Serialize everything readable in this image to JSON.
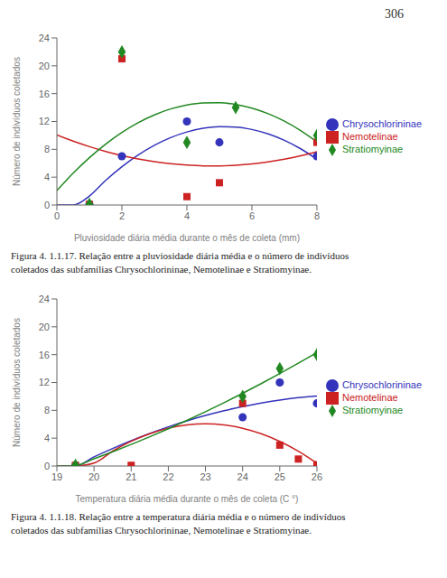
{
  "chart_data": [
    {
      "type": "scatter",
      "annotations": [
        "306"
      ],
      "xlabel": "Pluviosidade diária média durante o mês de coleta (mm)",
      "ylabel": "Número de indivíduos coletados",
      "caption": "Figura 4. 1.1.17. Relação entre a pluviosidade diária média e o número de indivíduos\ncoletados das subfamílias Chrysochlorininae, Nemotelinae e Stratiomyinae.",
      "xlim": [
        0,
        8
      ],
      "ylim": [
        0,
        24
      ],
      "xticks": [
        0,
        2,
        4,
        6,
        8
      ],
      "yticks": [
        0,
        4,
        8,
        12,
        16,
        20,
        24
      ],
      "grid": false,
      "legend": "right",
      "fit_x": [
        0,
        0.5,
        1,
        1.5,
        2,
        2.5,
        3,
        3.5,
        4,
        4.5,
        5,
        5.5,
        6,
        6.5,
        7,
        7.5,
        8
      ],
      "series": [
        {
          "name": "Chrysochlorininae",
          "color": "#3333bb",
          "marker": "circle",
          "x": [
            1.0,
            2.0,
            4.0,
            5.0,
            8.0
          ],
          "values": [
            0.1,
            7.0,
            12.0,
            9.0,
            7.0
          ],
          "fit_values": [
            0,
            0,
            1.275,
            3.536,
            5.507,
            7.188,
            8.58,
            9.682,
            10.495,
            11.018,
            11.252,
            11.196,
            10.85,
            10.215,
            9.29,
            8.076,
            6.572
          ]
        },
        {
          "name": "Nemotelinae",
          "color": "#cc2222",
          "marker": "square",
          "x": [
            1.0,
            2.0,
            4.0,
            5.0,
            8.0
          ],
          "values": [
            0.1,
            21.0,
            1.2,
            3.2,
            9.0
          ],
          "fit_values": [
            10.055,
            9.171,
            8.385,
            7.697,
            7.107,
            6.614,
            6.22,
            5.924,
            5.725,
            5.624,
            5.622,
            5.717,
            5.91,
            6.201,
            6.59,
            7.077,
            7.662
          ]
        },
        {
          "name": "Stratiomyinae",
          "color": "#228822",
          "marker": "diamond",
          "x": [
            1.0,
            2.0,
            4.0,
            5.5,
            8.0
          ],
          "values": [
            0.1,
            22.0,
            9.0,
            14.0,
            10.0
          ],
          "fit_values": [
            2.069,
            4.57,
            6.796,
            8.746,
            10.422,
            11.822,
            12.947,
            13.797,
            14.372,
            14.671,
            14.696,
            14.445,
            13.92,
            13.119,
            12.043,
            10.692,
            9.066
          ]
        }
      ]
    },
    {
      "type": "scatter",
      "xlabel": "Temperatura diária média durante o mês de coleta (C       °)",
      "ylabel": "Número de indivíduos coletados",
      "caption": "Figura 4. 1.1.18. Relação entre a temperatura diária média e o número de indivíduos\ncoletados das subfamílias Chrysochlorininae, Nemotelinae e Stratiomyinae.",
      "xlim": [
        19,
        26
      ],
      "ylim": [
        0,
        24
      ],
      "xticks": [
        19,
        20,
        21,
        22,
        23,
        24,
        25,
        26
      ],
      "yticks": [
        0,
        4,
        8,
        12,
        16,
        20,
        24
      ],
      "grid": false,
      "legend": "right",
      "fit_x": [
        19,
        19.5,
        20,
        20.5,
        21,
        21.5,
        22,
        22.5,
        23,
        23.5,
        24,
        24.5,
        25,
        25.5,
        26
      ],
      "series": [
        {
          "name": "Chrysochlorininae",
          "color": "#3333bb",
          "marker": "circle",
          "x": [
            19.5,
            24.0,
            25.0,
            26.0
          ],
          "values": [
            0.1,
            7.0,
            12.0,
            9.0
          ],
          "fit_values": [
            0,
            0.014,
            1.31,
            2.518,
            3.64,
            4.675,
            5.622,
            6.482,
            7.256,
            7.942,
            8.541,
            9.053,
            9.478,
            9.816,
            10.067
          ]
        },
        {
          "name": "Nemotelinae",
          "color": "#cc2222",
          "marker": "square",
          "x": [
            19.5,
            21.0,
            24.0,
            25.0,
            25.5,
            26.0
          ],
          "values": [
            0.1,
            0.1,
            9.0,
            3.0,
            1.0,
            0.2
          ],
          "fit_values": [
            0,
            0,
            0.416,
            2.141,
            3.551,
            4.648,
            5.431,
            5.9,
            6.055,
            5.896,
            5.423,
            4.636,
            3.536,
            2.121,
            0.392
          ]
        },
        {
          "name": "Stratiomyinae",
          "color": "#228822",
          "marker": "diamond",
          "x": [
            19.5,
            24.0,
            25.0,
            26.0
          ],
          "values": [
            0.1,
            10.0,
            14.0,
            16.0
          ],
          "fit_values": [
            0,
            0.075,
            1.034,
            2.041,
            3.096,
            4.199,
            5.351,
            6.551,
            7.8,
            9.097,
            10.442,
            11.835,
            13.277,
            14.767,
            16.306
          ]
        }
      ]
    }
  ]
}
